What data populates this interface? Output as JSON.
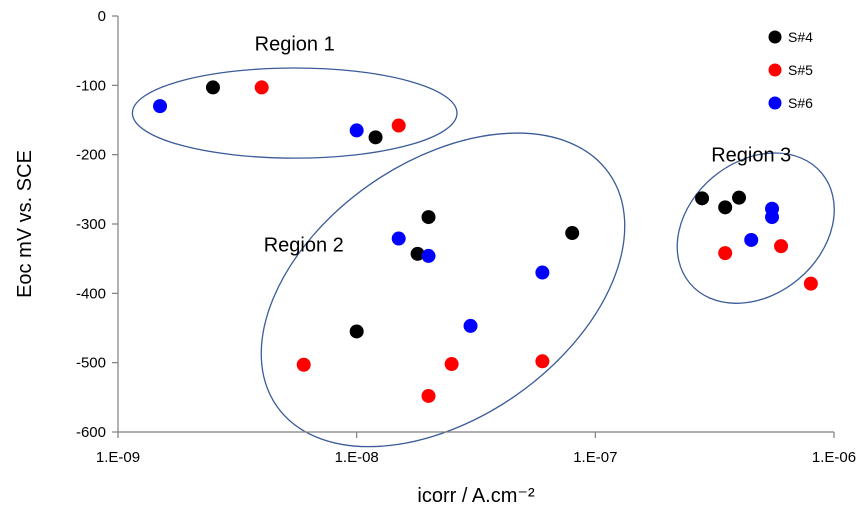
{
  "chart_data": {
    "type": "scatter",
    "xlabel": "icorr / A.cm⁻²",
    "ylabel": "Eoc mV vs. SCE",
    "x_scale": "log",
    "xlim": [
      1e-09,
      1e-06
    ],
    "ylim": [
      -600,
      0
    ],
    "x_ticks": [
      {
        "value": 1e-09,
        "label": "1.E-09"
      },
      {
        "value": 1e-08,
        "label": "1.E-08"
      },
      {
        "value": 1e-07,
        "label": "1.E-07"
      },
      {
        "value": 1e-06,
        "label": "1.E-06"
      }
    ],
    "y_ticks": [
      0,
      -100,
      -200,
      -300,
      -400,
      -500,
      -600
    ],
    "grid": false,
    "legend_position": "top-right",
    "series": [
      {
        "name": "S#4",
        "color": "#000000",
        "points": [
          {
            "x": 2.5e-09,
            "y": -103
          },
          {
            "x": 1.2e-08,
            "y": -175
          },
          {
            "x": 2e-08,
            "y": -290
          },
          {
            "x": 1.8e-08,
            "y": -343
          },
          {
            "x": 1e-08,
            "y": -455
          },
          {
            "x": 8e-08,
            "y": -313
          },
          {
            "x": 2.8e-07,
            "y": -263
          },
          {
            "x": 3.5e-07,
            "y": -276
          },
          {
            "x": 4e-07,
            "y": -262
          }
        ]
      },
      {
        "name": "S#5",
        "color": "#ff0000",
        "points": [
          {
            "x": 4e-09,
            "y": -103
          },
          {
            "x": 1.5e-08,
            "y": -158
          },
          {
            "x": 6e-09,
            "y": -503
          },
          {
            "x": 2e-08,
            "y": -548
          },
          {
            "x": 2.5e-08,
            "y": -502
          },
          {
            "x": 6e-08,
            "y": -498
          },
          {
            "x": 3.5e-07,
            "y": -342
          },
          {
            "x": 6e-07,
            "y": -332
          },
          {
            "x": 8e-07,
            "y": -386
          }
        ]
      },
      {
        "name": "S#6",
        "color": "#0000ff",
        "points": [
          {
            "x": 1.5e-09,
            "y": -130
          },
          {
            "x": 1e-08,
            "y": -165
          },
          {
            "x": 1.5e-08,
            "y": -321
          },
          {
            "x": 2e-08,
            "y": -346
          },
          {
            "x": 3e-08,
            "y": -447
          },
          {
            "x": 6e-08,
            "y": -370
          },
          {
            "x": 4.5e-07,
            "y": -323
          },
          {
            "x": 5.5e-07,
            "y": -278
          },
          {
            "x": 5.5e-07,
            "y": -290
          }
        ]
      }
    ],
    "annotations": [
      {
        "text": "Region 1",
        "x": 5.5e-09,
        "y": -50
      },
      {
        "text": "Region 2",
        "x": 6e-09,
        "y": -340
      },
      {
        "text": "Region 3",
        "x": 4.5e-07,
        "y": -210
      }
    ],
    "ellipses": [
      {
        "name": "region-1-ellipse",
        "cx": 5.5e-09,
        "cy": -140,
        "rx_decades": 0.68,
        "ry": 65,
        "rotate": 0
      },
      {
        "name": "region-2-ellipse",
        "cx": 2.3e-08,
        "cy": -395,
        "rx_decades": 0.85,
        "ry": 185,
        "rotate": -35
      },
      {
        "name": "region-3-ellipse",
        "cx": 4.7e-07,
        "cy": -306,
        "rx_decades": 0.36,
        "ry": 96,
        "rotate": -40
      }
    ]
  }
}
